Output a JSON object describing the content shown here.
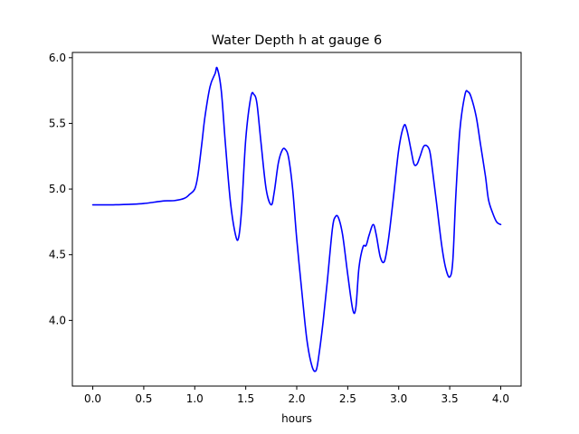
{
  "chart_data": {
    "type": "line",
    "title": "Water Depth h at gauge 6",
    "xlabel": "hours",
    "ylabel": "",
    "xlim": [
      -0.2,
      4.2
    ],
    "ylim": [
      3.5,
      6.04
    ],
    "xticks": [
      0.0,
      0.5,
      1.0,
      1.5,
      2.0,
      2.5,
      3.0,
      3.5,
      4.0
    ],
    "xtick_labels": [
      "0.0",
      "0.5",
      "1.0",
      "1.5",
      "2.0",
      "2.5",
      "3.0",
      "3.5",
      "4.0"
    ],
    "yticks": [
      4.0,
      4.5,
      5.0,
      5.5,
      6.0
    ],
    "ytick_labels": [
      "4.0",
      "4.5",
      "5.0",
      "5.5",
      "6.0"
    ],
    "grid": false,
    "legend": "none",
    "colors": {
      "line": "#0000ff",
      "axes": "#000000",
      "background": "#ffffff"
    },
    "series": [
      {
        "x": [
          0.0,
          0.2,
          0.4,
          0.5,
          0.6,
          0.7,
          0.8,
          0.9,
          0.95,
          1.0,
          1.03,
          1.07,
          1.1,
          1.15,
          1.2,
          1.22,
          1.26,
          1.3,
          1.35,
          1.4,
          1.43,
          1.46,
          1.5,
          1.55,
          1.58,
          1.61,
          1.65,
          1.7,
          1.75,
          1.78,
          1.82,
          1.86,
          1.89,
          1.92,
          1.96,
          2.0,
          2.05,
          2.1,
          2.15,
          2.19,
          2.22,
          2.26,
          2.3,
          2.35,
          2.38,
          2.41,
          2.45,
          2.5,
          2.55,
          2.58,
          2.61,
          2.65,
          2.68,
          2.71,
          2.75,
          2.78,
          2.82,
          2.86,
          2.9,
          2.95,
          3.0,
          3.05,
          3.08,
          3.12,
          3.15,
          3.18,
          3.21,
          3.25,
          3.3,
          3.33,
          3.37,
          3.42,
          3.46,
          3.5,
          3.53,
          3.56,
          3.6,
          3.65,
          3.68,
          3.71,
          3.76,
          3.8,
          3.85,
          3.88,
          3.92,
          3.96,
          4.0
        ],
        "y": [
          4.88,
          4.88,
          4.885,
          4.89,
          4.9,
          4.91,
          4.912,
          4.93,
          4.96,
          5.0,
          5.1,
          5.35,
          5.55,
          5.78,
          5.88,
          5.92,
          5.75,
          5.35,
          4.9,
          4.65,
          4.63,
          4.85,
          5.38,
          5.7,
          5.72,
          5.65,
          5.35,
          5.0,
          4.88,
          4.98,
          5.2,
          5.3,
          5.3,
          5.24,
          5.0,
          4.62,
          4.22,
          3.85,
          3.65,
          3.62,
          3.75,
          4.0,
          4.3,
          4.7,
          4.79,
          4.78,
          4.65,
          4.35,
          4.08,
          4.1,
          4.4,
          4.56,
          4.57,
          4.65,
          4.73,
          4.65,
          4.48,
          4.45,
          4.62,
          4.95,
          5.3,
          5.48,
          5.45,
          5.3,
          5.19,
          5.19,
          5.25,
          5.33,
          5.3,
          5.15,
          4.9,
          4.58,
          4.4,
          4.33,
          4.45,
          4.95,
          5.45,
          5.72,
          5.74,
          5.7,
          5.55,
          5.35,
          5.1,
          4.92,
          4.82,
          4.75,
          4.73
        ]
      }
    ]
  }
}
